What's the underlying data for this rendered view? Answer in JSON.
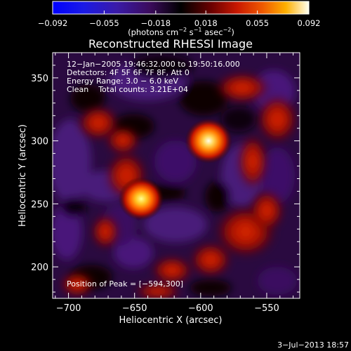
{
  "chart_data": {
    "type": "heatmap",
    "title": "Reconstructed RHESSI Image",
    "xlabel": "Heliocentric X (arcsec)",
    "ylabel": "Heliocentric Y (arcsec)",
    "xlim": [
      -712,
      -525
    ],
    "ylim": [
      175,
      370
    ],
    "x_ticks": [
      -700,
      -650,
      -600,
      -550
    ],
    "y_ticks": [
      200,
      250,
      300,
      350
    ],
    "x_tick_labels": [
      "−700",
      "−650",
      "−600",
      "−550"
    ],
    "y_tick_labels": [
      "200",
      "250",
      "300",
      "350"
    ],
    "colorbar": {
      "range": [
        -0.092,
        0.092
      ],
      "ticks": [
        -0.092,
        -0.055,
        -0.018,
        0.018,
        0.055,
        0.092
      ],
      "tick_labels": [
        "−0.092",
        "−0.055",
        "−0.018",
        "0.018",
        "0.055",
        "0.092"
      ],
      "unit_label": "(photons cm",
      "unit_exp1": "−2",
      "unit_mid": " s",
      "unit_exp2": "−1",
      "unit_end": " asec",
      "unit_exp3": "−2",
      "unit_close": ")"
    },
    "annotations": [
      "12−Jan−2005 19:46:32.000 to 19:50:16.000",
      "Detectors: 4F 5F 6F 7F 8F, Att 0",
      "Energy Range: 3.0 − 6.0 keV",
      "Clean    Total counts: 3.21E+04"
    ],
    "peak_label": "Position of Peak = [−594,300]",
    "sources": [
      {
        "x": -594,
        "y": 300,
        "value": 0.092
      },
      {
        "x": -645,
        "y": 254,
        "value": 0.085
      }
    ]
  },
  "footer": {
    "timestamp": "3−Jul−2013 18:57"
  },
  "colors": {
    "background": "#000000",
    "foreground": "#ffffff"
  }
}
